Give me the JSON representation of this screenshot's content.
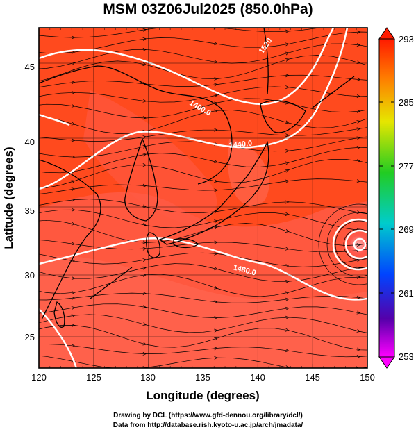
{
  "title": "MSM 03Z06Jul2025 (850.0hPa)",
  "map": {
    "xlabel": "Longitude (degrees)",
    "ylabel": "Latitude  (degrees)",
    "x_range": [
      120,
      150
    ],
    "y_range": [
      23,
      48
    ],
    "x_ticks": [
      "120",
      "125",
      "130",
      "135",
      "140",
      "145",
      "150"
    ],
    "y_ticks": [
      "25",
      "30",
      "35",
      "40",
      "45"
    ],
    "contour_labels": [
      "1400.0",
      "1440.0",
      "1480.0",
      "1520"
    ],
    "colorbar": {
      "min": 253,
      "max": 293,
      "ticks": [
        "293",
        "285",
        "277",
        "269",
        "261",
        "253"
      ]
    },
    "colors": {
      "field_main": "#ff4a1e",
      "field_warm": "#ff5a45",
      "field_light": "#ff6a55",
      "coast": "#000000",
      "contour": "#ffffff"
    }
  },
  "footer": {
    "line1": "Drawing by DCL (https://www.gfd-dennou.org/library/dcl/)",
    "line2": "Data from http://database.rish.kyoto-u.ac.jp/arch/jmadata/"
  }
}
